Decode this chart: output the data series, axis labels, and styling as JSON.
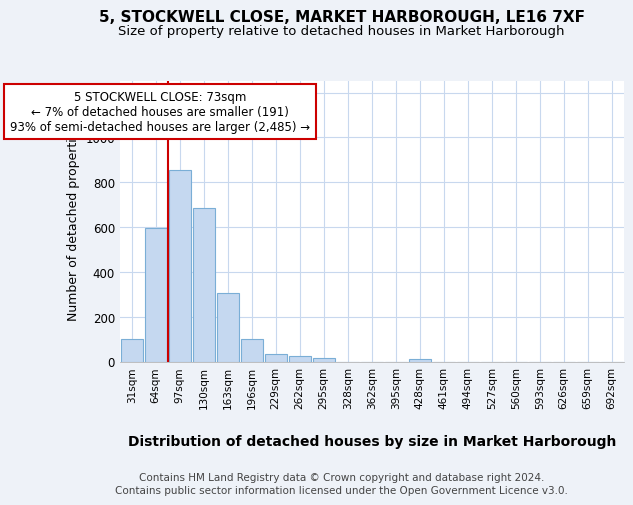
{
  "title1": "5, STOCKWELL CLOSE, MARKET HARBOROUGH, LE16 7XF",
  "title2": "Size of property relative to detached houses in Market Harborough",
  "xlabel": "Distribution of detached houses by size in Market Harborough",
  "ylabel": "Number of detached properties",
  "footer1": "Contains HM Land Registry data © Crown copyright and database right 2024.",
  "footer2": "Contains public sector information licensed under the Open Government Licence v3.0.",
  "categories": [
    "31sqm",
    "64sqm",
    "97sqm",
    "130sqm",
    "163sqm",
    "196sqm",
    "229sqm",
    "262sqm",
    "295sqm",
    "328sqm",
    "362sqm",
    "395sqm",
    "428sqm",
    "461sqm",
    "494sqm",
    "527sqm",
    "560sqm",
    "593sqm",
    "626sqm",
    "659sqm",
    "692sqm"
  ],
  "values": [
    100,
    595,
    855,
    685,
    305,
    100,
    33,
    25,
    15,
    0,
    0,
    0,
    12,
    0,
    0,
    0,
    0,
    0,
    0,
    0,
    0
  ],
  "bar_color": "#c5d8f0",
  "bar_edge_color": "#7aaed6",
  "vline_color": "#cc0000",
  "annotation_box_facecolor": "#ffffff",
  "annotation_box_edgecolor": "#cc0000",
  "annotation_title": "5 STOCKWELL CLOSE: 73sqm",
  "annotation_line1": "← 7% of detached houses are smaller (191)",
  "annotation_line2": "93% of semi-detached houses are larger (2,485) →",
  "ylim": [
    0,
    1250
  ],
  "yticks": [
    0,
    200,
    400,
    600,
    800,
    1000,
    1200
  ],
  "bg_color": "#eef2f8",
  "plot_bg_color": "#ffffff",
  "grid_color": "#c8d8ee",
  "title1_fontsize": 11,
  "title2_fontsize": 9.5,
  "xlabel_fontsize": 10,
  "ylabel_fontsize": 9,
  "footer_fontsize": 7.5
}
